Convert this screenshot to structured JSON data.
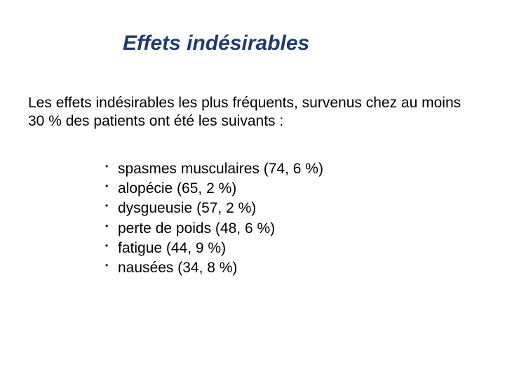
{
  "title": "Effets indésirables",
  "intro": "Les effets indésirables les plus fréquents, survenus chez au moins 30 % des patients ont été les suivants :",
  "items": [
    "spasmes musculaires (74, 6 %)",
    "alopécie (65, 2 %)",
    "dysgueusie (57, 2 %)",
    "perte de poids (48, 6 %)",
    "fatigue (44, 9 %)",
    "nausées (34, 8 %)"
  ],
  "colors": {
    "title": "#1f3b6e",
    "text": "#000000",
    "background": "#ffffff"
  },
  "typography": {
    "title_fontsize": 30,
    "title_style": "italic bold",
    "body_fontsize": 21,
    "font_family": "Arial"
  }
}
